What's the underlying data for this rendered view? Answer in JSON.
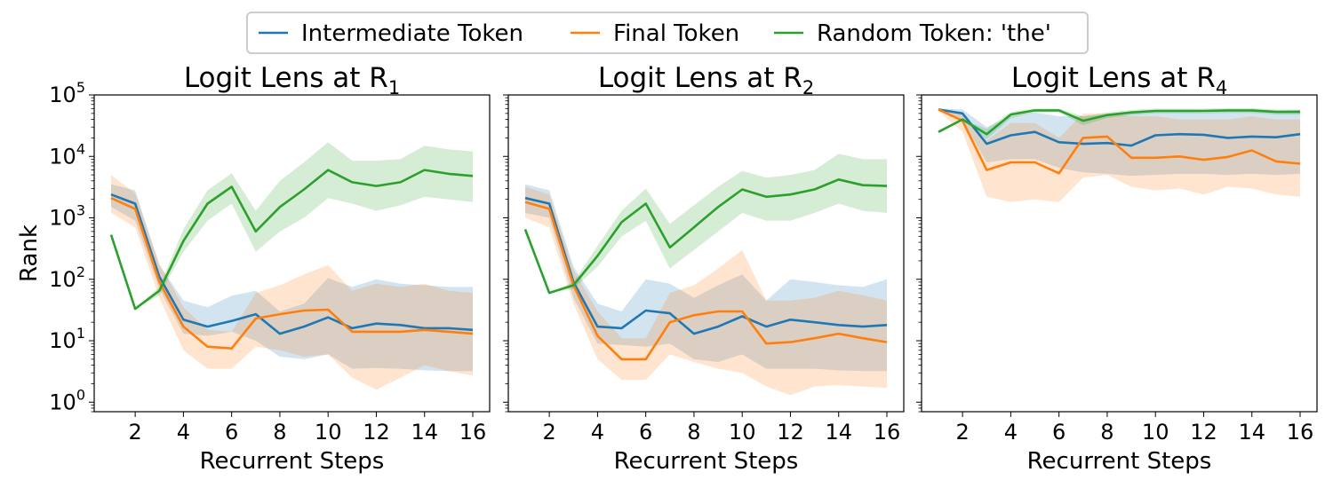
{
  "legend": {
    "items": [
      {
        "label": "Intermediate Token",
        "color": "#1f77b4"
      },
      {
        "label": "Final Token",
        "color": "#ff7f0e"
      },
      {
        "label": "Random Token: 'the'",
        "color": "#2ca02c"
      }
    ]
  },
  "chart_data": [
    {
      "type": "line",
      "title": "Logit Lens at R",
      "title_subscript": "1",
      "xlabel": "Recurrent Steps",
      "ylabel": "Rank",
      "yscale": "log",
      "xlim": [
        0.3,
        16.7
      ],
      "ylim": [
        0.7,
        100000
      ],
      "xticks": [
        2,
        4,
        6,
        8,
        10,
        12,
        14,
        16
      ],
      "yticks": [
        1,
        10,
        100,
        1000,
        10000,
        100000
      ],
      "ytick_labels": [
        {
          "base": "10",
          "exp": "0"
        },
        {
          "base": "10",
          "exp": "1"
        },
        {
          "base": "10",
          "exp": "2"
        },
        {
          "base": "10",
          "exp": "3"
        },
        {
          "base": "10",
          "exp": "4"
        },
        {
          "base": "10",
          "exp": "5"
        }
      ],
      "x": [
        1,
        2,
        3,
        4,
        5,
        6,
        7,
        8,
        9,
        10,
        11,
        12,
        13,
        14,
        15,
        16
      ],
      "series": [
        {
          "name": "Intermediate Token",
          "color": "#1f77b4",
          "values": [
            2400,
            1700,
            110,
            22,
            17,
            21,
            27,
            13,
            17,
            24,
            16,
            19,
            18,
            16,
            16,
            15
          ],
          "lower": [
            1500,
            900,
            70,
            13,
            12,
            14,
            10,
            5.5,
            5,
            6,
            3.5,
            3.6,
            3.5,
            3.3,
            3.2,
            3.2
          ],
          "upper": [
            3500,
            2800,
            170,
            45,
            35,
            54,
            65,
            30,
            40,
            105,
            75,
            100,
            85,
            80,
            75,
            75
          ]
        },
        {
          "name": "Final Token",
          "color": "#ff7f0e",
          "values": [
            2100,
            1400,
            90,
            17,
            8,
            7.5,
            23,
            27,
            31,
            32,
            14,
            14,
            14,
            15,
            14,
            13
          ],
          "lower": [
            1200,
            700,
            50,
            7,
            3.5,
            3.5,
            8,
            7,
            5.5,
            6,
            2.5,
            1.6,
            2.5,
            4,
            3.2,
            2.7
          ],
          "upper": [
            5000,
            2500,
            180,
            35,
            15,
            14,
            60,
            80,
            120,
            170,
            65,
            85,
            75,
            85,
            65,
            60
          ]
        },
        {
          "name": "Random Token: 'the'",
          "color": "#2ca02c",
          "values": [
            530,
            33,
            65,
            420,
            1700,
            3200,
            600,
            1500,
            2900,
            6000,
            3800,
            3300,
            3800,
            6000,
            5200,
            4800
          ],
          "lower": [
            530,
            33,
            55,
            280,
            900,
            1700,
            280,
            600,
            1000,
            2100,
            1700,
            1300,
            1600,
            2200,
            2000,
            1800
          ],
          "upper": [
            530,
            33,
            75,
            650,
            2800,
            5300,
            1300,
            4000,
            8000,
            17000,
            8500,
            8500,
            9000,
            15000,
            13000,
            12000
          ]
        }
      ]
    },
    {
      "type": "line",
      "title": "Logit Lens at R",
      "title_subscript": "2",
      "xlabel": "Recurrent Steps",
      "yscale": "log",
      "xlim": [
        0.3,
        16.7
      ],
      "ylim": [
        0.7,
        100000
      ],
      "xticks": [
        2,
        4,
        6,
        8,
        10,
        12,
        14,
        16
      ],
      "yticks": [
        1,
        10,
        100,
        1000,
        10000,
        100000
      ],
      "x": [
        1,
        2,
        3,
        4,
        5,
        6,
        7,
        8,
        9,
        10,
        11,
        12,
        13,
        14,
        15,
        16
      ],
      "series": [
        {
          "name": "Intermediate Token",
          "color": "#1f77b4",
          "values": [
            2100,
            1700,
            90,
            17,
            16,
            31,
            28,
            13,
            17,
            25,
            17,
            22,
            20,
            18,
            17,
            18
          ],
          "lower": [
            1200,
            1000,
            50,
            9,
            8.5,
            8,
            9,
            5,
            4.5,
            6,
            3.5,
            3.5,
            3.5,
            3.3,
            3.2,
            3.2
          ],
          "upper": [
            3500,
            2800,
            160,
            40,
            30,
            100,
            85,
            50,
            80,
            120,
            45,
            100,
            90,
            80,
            75,
            100
          ]
        },
        {
          "name": "Final Token",
          "color": "#ff7f0e",
          "values": [
            1800,
            1400,
            80,
            12,
            5,
            5,
            20,
            26,
            30,
            30,
            9,
            9.5,
            11,
            13,
            11,
            9.5
          ],
          "lower": [
            1000,
            700,
            40,
            5,
            2.3,
            2.3,
            6,
            4.5,
            3.5,
            3,
            1.8,
            1.3,
            1.8,
            1.9,
            1.8,
            1.7
          ],
          "upper": [
            3200,
            2400,
            140,
            30,
            11,
            11,
            60,
            80,
            150,
            300,
            45,
            45,
            50,
            65,
            55,
            45
          ]
        },
        {
          "name": "Random Token: 'the'",
          "color": "#2ca02c",
          "values": [
            650,
            60,
            80,
            240,
            850,
            1700,
            330,
            700,
            1500,
            2900,
            2200,
            2400,
            2900,
            4200,
            3400,
            3300
          ],
          "lower": [
            650,
            60,
            70,
            160,
            500,
            900,
            150,
            300,
            600,
            1200,
            900,
            900,
            1200,
            1700,
            1300,
            1200
          ],
          "upper": [
            650,
            60,
            90,
            350,
            1300,
            3000,
            800,
            1600,
            3200,
            5800,
            4500,
            5000,
            6000,
            11000,
            9000,
            9000
          ]
        }
      ]
    },
    {
      "type": "line",
      "title": "Logit Lens at R",
      "title_subscript": "4",
      "xlabel": "Recurrent Steps",
      "yscale": "log",
      "xlim": [
        0.3,
        16.7
      ],
      "ylim": [
        0.7,
        100000
      ],
      "xticks": [
        2,
        4,
        6,
        8,
        10,
        12,
        14,
        16
      ],
      "yticks": [
        1,
        10,
        100,
        1000,
        10000,
        100000
      ],
      "x": [
        1,
        2,
        3,
        4,
        5,
        6,
        7,
        8,
        9,
        10,
        11,
        12,
        13,
        14,
        15,
        16
      ],
      "series": [
        {
          "name": "Intermediate Token",
          "color": "#1f77b4",
          "values": [
            58000,
            50000,
            16000,
            22000,
            25000,
            17000,
            16000,
            16500,
            15000,
            22000,
            23000,
            22500,
            20000,
            21000,
            20500,
            23000
          ],
          "lower": [
            56000,
            38000,
            8000,
            9000,
            9000,
            6500,
            5500,
            5200,
            4800,
            5000,
            5200,
            5200,
            5000,
            5200,
            5000,
            5200
          ],
          "upper": [
            60000,
            58000,
            30000,
            45000,
            52000,
            45000,
            45000,
            48000,
            52000,
            55000,
            55000,
            52000,
            55000,
            55000,
            55000,
            57000
          ]
        },
        {
          "name": "Final Token",
          "color": "#ff7f0e",
          "values": [
            58000,
            38000,
            6000,
            8000,
            8000,
            5300,
            20000,
            21000,
            9500,
            9500,
            10000,
            8800,
            9800,
            12500,
            8300,
            7600
          ],
          "lower": [
            55000,
            25000,
            2200,
            1800,
            2000,
            1800,
            4500,
            5000,
            3200,
            2800,
            3000,
            2400,
            3200,
            3000,
            2400,
            2200
          ],
          "upper": [
            60000,
            52000,
            18000,
            35000,
            35000,
            20000,
            50000,
            50000,
            45000,
            45000,
            40000,
            40000,
            40000,
            45000,
            40000,
            40000
          ]
        },
        {
          "name": "Random Token: 'the'",
          "color": "#2ca02c",
          "values": [
            25000,
            40000,
            23000,
            48000,
            56000,
            56000,
            38000,
            47000,
            52000,
            55000,
            55000,
            55000,
            56000,
            56000,
            53000,
            53000
          ],
          "lower": [
            25000,
            40000,
            19000,
            42000,
            52000,
            52000,
            32000,
            42000,
            47000,
            50000,
            50000,
            50000,
            51000,
            51000,
            48000,
            48000
          ],
          "upper": [
            25000,
            40000,
            28000,
            53000,
            60000,
            60000,
            45000,
            52000,
            57000,
            60000,
            60000,
            60000,
            61000,
            61000,
            58000,
            58000
          ]
        }
      ]
    }
  ]
}
